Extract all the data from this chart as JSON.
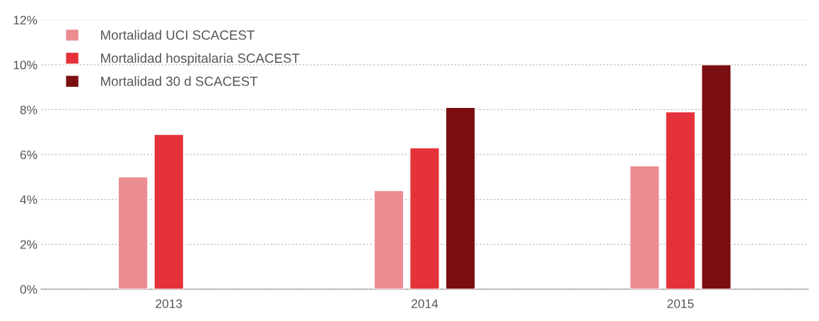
{
  "chart_data": {
    "type": "bar",
    "categories": [
      "2013",
      "2014",
      "2015"
    ],
    "series": [
      {
        "name": "Mortalidad UCI SCACEST",
        "color": "#eb8c90",
        "values": [
          5.0,
          4.4,
          5.5
        ]
      },
      {
        "name": "Mortalidad hospitalaria SCACEST",
        "color": "#e5323a",
        "values": [
          6.9,
          6.3,
          7.9
        ]
      },
      {
        "name": "Mortalidad 30 d SCACEST",
        "color": "#7a0e10",
        "values": [
          null,
          8.1,
          10.0
        ]
      }
    ],
    "ylim": [
      0,
      12
    ],
    "yticks": [
      {
        "value": 0,
        "label": "0%"
      },
      {
        "value": 2,
        "label": "2%"
      },
      {
        "value": 4,
        "label": "4%"
      },
      {
        "value": 6,
        "label": "6%"
      },
      {
        "value": 8,
        "label": "8%"
      },
      {
        "value": 10,
        "label": "10%"
      },
      {
        "value": 12,
        "label": "12%"
      }
    ],
    "grid": "y",
    "legend": "top left"
  }
}
